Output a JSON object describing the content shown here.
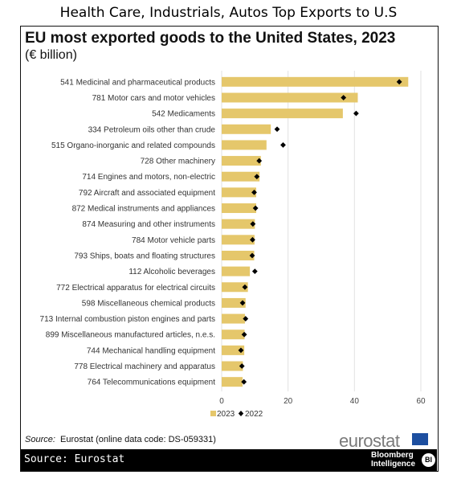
{
  "page_title": "Health Care, Industrials, Autos Top Exports to U.S",
  "chart_data": {
    "type": "bar",
    "orientation": "horizontal",
    "title": "EU most exported goods to the United States, 2023",
    "subtitle": "(€ billion)",
    "categories": [
      "541 Medicinal and pharmaceutical products",
      "781 Motor cars and motor vehicles",
      "542 Medicaments",
      "334 Petroleum oils other than crude",
      "515 Organo-inorganic and related compounds",
      "728 Other machinery",
      "714 Engines and motors, non-electric",
      "792 Aircraft and associated equipment",
      "872 Medical instruments and appliances",
      "874 Measuring and other instruments",
      "784 Motor vehicle parts",
      "793 Ships, boats and floating structures",
      "112 Alcoholic beverages",
      "772 Electrical apparatus for electrical circuits",
      "598 Miscellaneous chemical products",
      "713 Internal combustion piston engines and parts",
      "899 Miscellaneous manufactured articles, n.e.s.",
      "744 Mechanical handling equipment",
      "778 Electrical machinery and apparatus",
      "764 Telecommunications equipment"
    ],
    "series": [
      {
        "name": "2023",
        "style": "bar",
        "values": [
          56.2,
          41.0,
          36.5,
          14.8,
          13.5,
          11.8,
          11.4,
          10.4,
          10.4,
          10.0,
          9.9,
          9.8,
          8.5,
          7.9,
          7.2,
          7.0,
          6.9,
          6.8,
          6.4,
          6.3
        ]
      },
      {
        "name": "2022",
        "style": "diamond",
        "values": [
          53.5,
          36.7,
          40.5,
          16.7,
          18.5,
          11.3,
          10.6,
          9.8,
          10.2,
          9.4,
          9.3,
          9.2,
          10.0,
          7.0,
          6.3,
          7.2,
          6.8,
          5.8,
          6.1,
          6.7
        ]
      }
    ],
    "xlim": [
      0,
      60
    ],
    "xticks": [
      "0",
      "20",
      "40",
      "60"
    ],
    "grid": true,
    "legend_position": "bottom-left",
    "source_label": "Source:",
    "source_text": "Eurostat (online data code: DS-059331)",
    "colors": {
      "bar": "#e5c76b",
      "marker": "#000000",
      "grid": "#e2e2e2"
    }
  },
  "branding": {
    "eurostat": "eurostat",
    "footer_source": "Source: Eurostat",
    "bloomberg_line1": "Bloomberg",
    "bloomberg_line2": "Intelligence",
    "badge": "BI"
  }
}
